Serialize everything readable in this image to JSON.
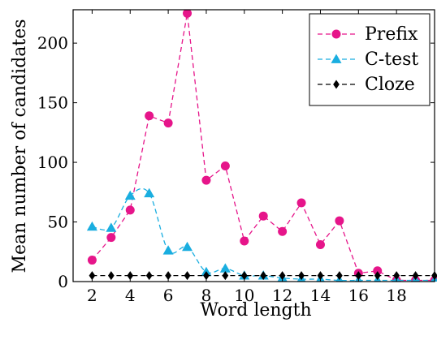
{
  "chart_data": {
    "type": "line",
    "xlabel": "Word length",
    "ylabel": "Mean number of candidates",
    "xlim": [
      1,
      20
    ],
    "ylim": [
      0,
      228
    ],
    "x_ticks": [
      2,
      4,
      6,
      8,
      10,
      12,
      14,
      16,
      18
    ],
    "y_ticks": [
      0,
      50,
      100,
      150,
      200
    ],
    "grid": false,
    "legend_position": "top-right",
    "series": [
      {
        "name": "Prefix",
        "color": "#e6158a",
        "marker": "circle",
        "smooth": false,
        "x": [
          2,
          3,
          4,
          5,
          6,
          7,
          8,
          9,
          10,
          11,
          12,
          13,
          14,
          15,
          16,
          17,
          18,
          19,
          20
        ],
        "y": [
          18,
          37,
          60,
          139,
          133,
          225,
          85,
          97,
          34,
          55,
          42,
          66,
          31,
          51,
          7,
          9,
          1,
          1,
          1
        ]
      },
      {
        "name": "C-test",
        "color": "#1aaee0",
        "marker": "triangle",
        "smooth": true,
        "x": [
          2,
          3,
          4,
          5,
          6,
          7,
          8,
          9,
          10,
          11,
          12,
          13,
          14,
          15,
          16,
          17,
          18,
          19,
          20
        ],
        "y": [
          46,
          45,
          72,
          74,
          26,
          29,
          8,
          11,
          5,
          5,
          3,
          2,
          2,
          1,
          1,
          1,
          1,
          1,
          1
        ]
      },
      {
        "name": "Cloze",
        "color": "#000000",
        "marker": "diamond",
        "smooth": false,
        "x": [
          2,
          3,
          4,
          5,
          6,
          7,
          8,
          9,
          10,
          11,
          12,
          13,
          14,
          15,
          16,
          17,
          18,
          19,
          20
        ],
        "y": [
          5,
          5,
          5,
          5,
          5,
          5,
          5,
          5,
          5,
          5,
          5,
          5,
          5,
          5,
          5,
          5,
          5,
          5,
          5
        ]
      }
    ]
  }
}
